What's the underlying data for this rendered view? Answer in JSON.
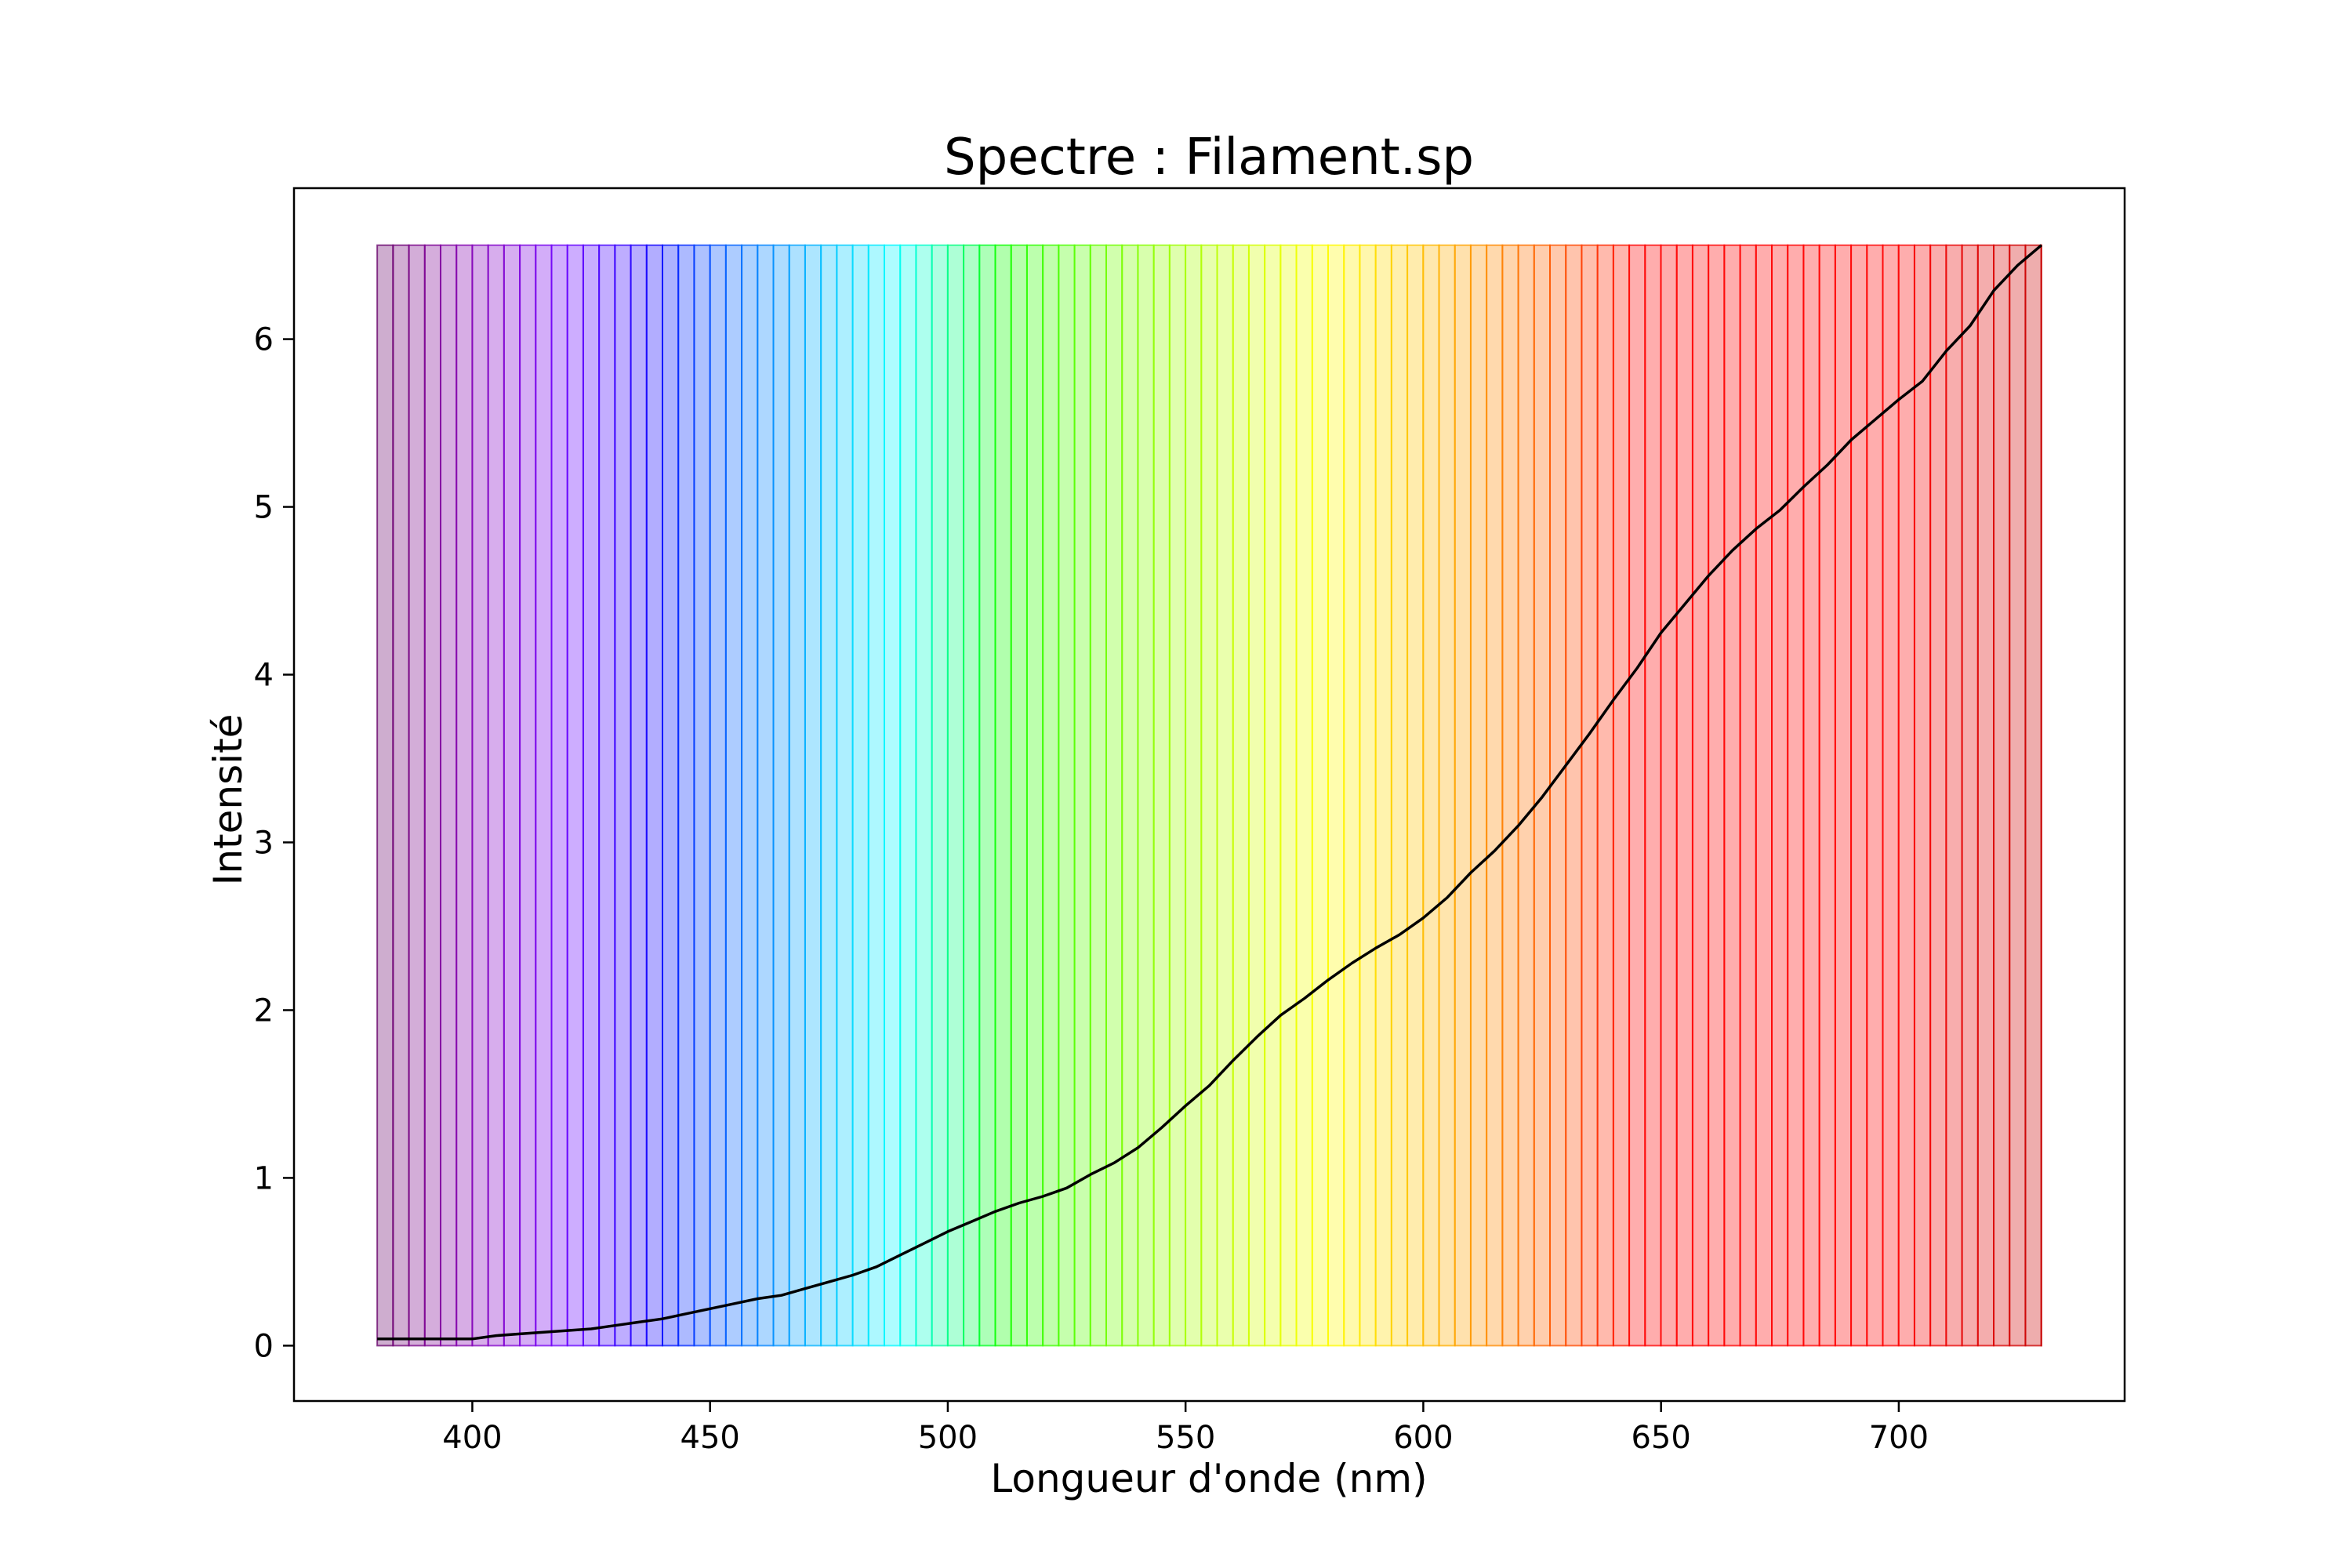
{
  "chart_data": {
    "type": "area",
    "title": "Spectre : Filament.sp",
    "xlabel": "Longueur d'onde (nm)",
    "ylabel": "Intensité",
    "xlim": [
      362.5,
      747.5
    ],
    "ylim": [
      -0.33,
      6.9
    ],
    "xticks": [
      400,
      450,
      500,
      550,
      600,
      650,
      700
    ],
    "yticks": [
      0,
      1,
      2,
      3,
      4,
      5,
      6
    ],
    "grid": false,
    "legend": "none",
    "line_color": "#000000",
    "band_top": 6.56,
    "band_step_nm": 3.333,
    "series": [
      {
        "x": [
          380,
          385,
          390,
          395,
          400,
          405,
          410,
          415,
          420,
          425,
          430,
          435,
          440,
          445,
          450,
          455,
          460,
          465,
          470,
          475,
          480,
          485,
          490,
          495,
          500,
          505,
          510,
          515,
          520,
          525,
          530,
          535,
          540,
          545,
          550,
          555,
          560,
          565,
          570,
          575,
          580,
          585,
          590,
          595,
          600,
          605,
          610,
          615,
          620,
          625,
          630,
          635,
          640,
          645,
          650,
          655,
          660,
          665,
          670,
          675,
          680,
          685,
          690,
          695,
          700,
          705,
          710,
          715,
          720,
          725,
          730
        ],
        "y": [
          0.04,
          0.04,
          0.04,
          0.04,
          0.04,
          0.06,
          0.07,
          0.08,
          0.09,
          0.1,
          0.12,
          0.14,
          0.16,
          0.19,
          0.22,
          0.25,
          0.28,
          0.3,
          0.34,
          0.38,
          0.42,
          0.47,
          0.54,
          0.61,
          0.68,
          0.74,
          0.8,
          0.85,
          0.89,
          0.94,
          1.02,
          1.09,
          1.18,
          1.3,
          1.43,
          1.55,
          1.7,
          1.84,
          1.97,
          2.07,
          2.18,
          2.28,
          2.37,
          2.45,
          2.55,
          2.67,
          2.82,
          2.95,
          3.1,
          3.27,
          3.46,
          3.65,
          3.85,
          4.04,
          4.25,
          4.42,
          4.59,
          4.74,
          4.87,
          4.98,
          5.12,
          5.25,
          5.4,
          5.52,
          5.64,
          5.75,
          5.93,
          6.08,
          6.29,
          6.44,
          6.56
        ]
      }
    ]
  }
}
